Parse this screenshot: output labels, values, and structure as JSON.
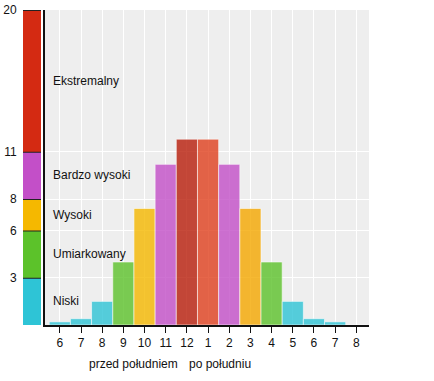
{
  "chart_data": {
    "type": "bar",
    "categories": [
      "6",
      "7",
      "8",
      "9",
      "10",
      "11",
      "12",
      "1",
      "2",
      "3",
      "4",
      "5",
      "6",
      "7",
      "8"
    ],
    "values": [
      0.2,
      0.4,
      1.5,
      4,
      7.4,
      10.2,
      11.8,
      11.8,
      10.2,
      7.4,
      4,
      1.5,
      0.4,
      0.2,
      0
    ],
    "colors": [
      "#2ec4d6",
      "#2ec4d6",
      "#2ec4d6",
      "#5cc22a",
      "#f5b800",
      "#c34fc8",
      "#b81d0a",
      "#e0401e",
      "#c34fc8",
      "#f5a800",
      "#5cc22a",
      "#2ec4d6",
      "#2ec4d6",
      "#2ec4d6",
      "#2ec4d6"
    ],
    "ylim": [
      0,
      20
    ],
    "yticks": [
      3,
      6,
      8,
      11,
      20
    ],
    "grid": true,
    "x_groups": [
      "przed południem",
      "po południu"
    ],
    "levels": [
      {
        "label": "Niski",
        "from": 0,
        "to": 3,
        "color": "#2ec4d6"
      },
      {
        "label": "Umiarkowany",
        "from": 3,
        "to": 6,
        "color": "#5cc22a"
      },
      {
        "label": "Wysoki",
        "from": 6,
        "to": 8,
        "color": "#f5b800"
      },
      {
        "label": "Bardzo wysoki",
        "from": 8,
        "to": 11,
        "color": "#c34fc8"
      },
      {
        "label": "Ekstremalny",
        "from": 11,
        "to": 20,
        "color": "#d42a12"
      }
    ]
  }
}
